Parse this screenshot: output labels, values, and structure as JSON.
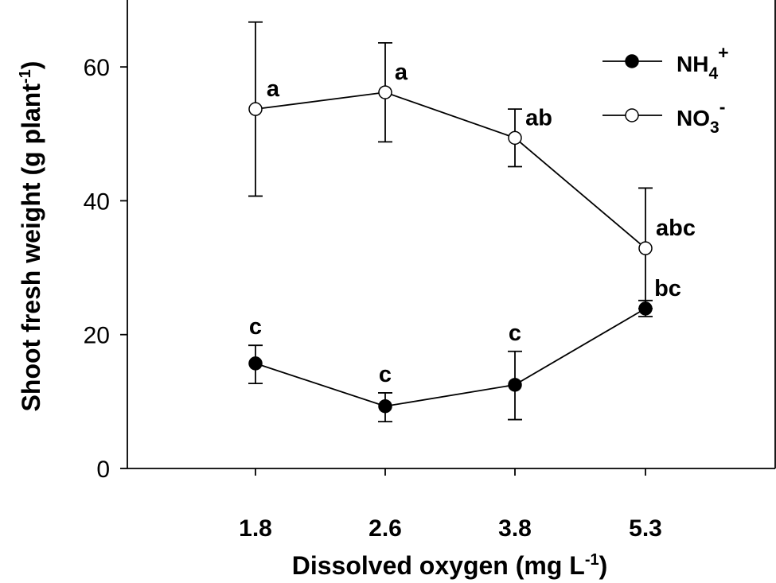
{
  "chart_data": {
    "type": "line",
    "xlabel": "Dissolved oxygen (mg L",
    "xlabel_sup": "-1",
    "xlabel_end": ")",
    "ylabel": "Shoot fresh weight (g plant",
    "ylabel_sup": "-1",
    "ylabel_end": ")",
    "categories": [
      "1.8",
      "2.6",
      "3.8",
      "5.3"
    ],
    "ylim": [
      0,
      70
    ],
    "yticks": [
      "0",
      "20",
      "40",
      "60"
    ],
    "ytick_values": [
      0,
      20,
      40,
      60
    ],
    "grid": false,
    "legend_position": "top-right",
    "series": [
      {
        "name": "NH",
        "name_sub": "4",
        "name_sup": "+",
        "marker": "filled-circle",
        "values": [
          15.7,
          9.3,
          12.5,
          23.9
        ],
        "err_low": [
          3.0,
          2.3,
          5.2,
          1.2
        ],
        "err_high": [
          2.7,
          2.0,
          5.0,
          1.2
        ],
        "letters": [
          "c",
          "c",
          "c",
          "bc"
        ]
      },
      {
        "name": "NO",
        "name_sub": "3",
        "name_sup": "-",
        "marker": "open-circle",
        "values": [
          53.7,
          56.2,
          49.4,
          32.9
        ],
        "err_low": [
          13.0,
          7.4,
          4.3,
          9.0
        ],
        "err_high": [
          13.0,
          7.4,
          4.3,
          9.0
        ],
        "letters": [
          "a",
          "a",
          "ab",
          "abc"
        ]
      }
    ],
    "colors": {
      "line": "#000000",
      "filled_marker": "#000000",
      "open_marker": "#ffffff"
    }
  }
}
